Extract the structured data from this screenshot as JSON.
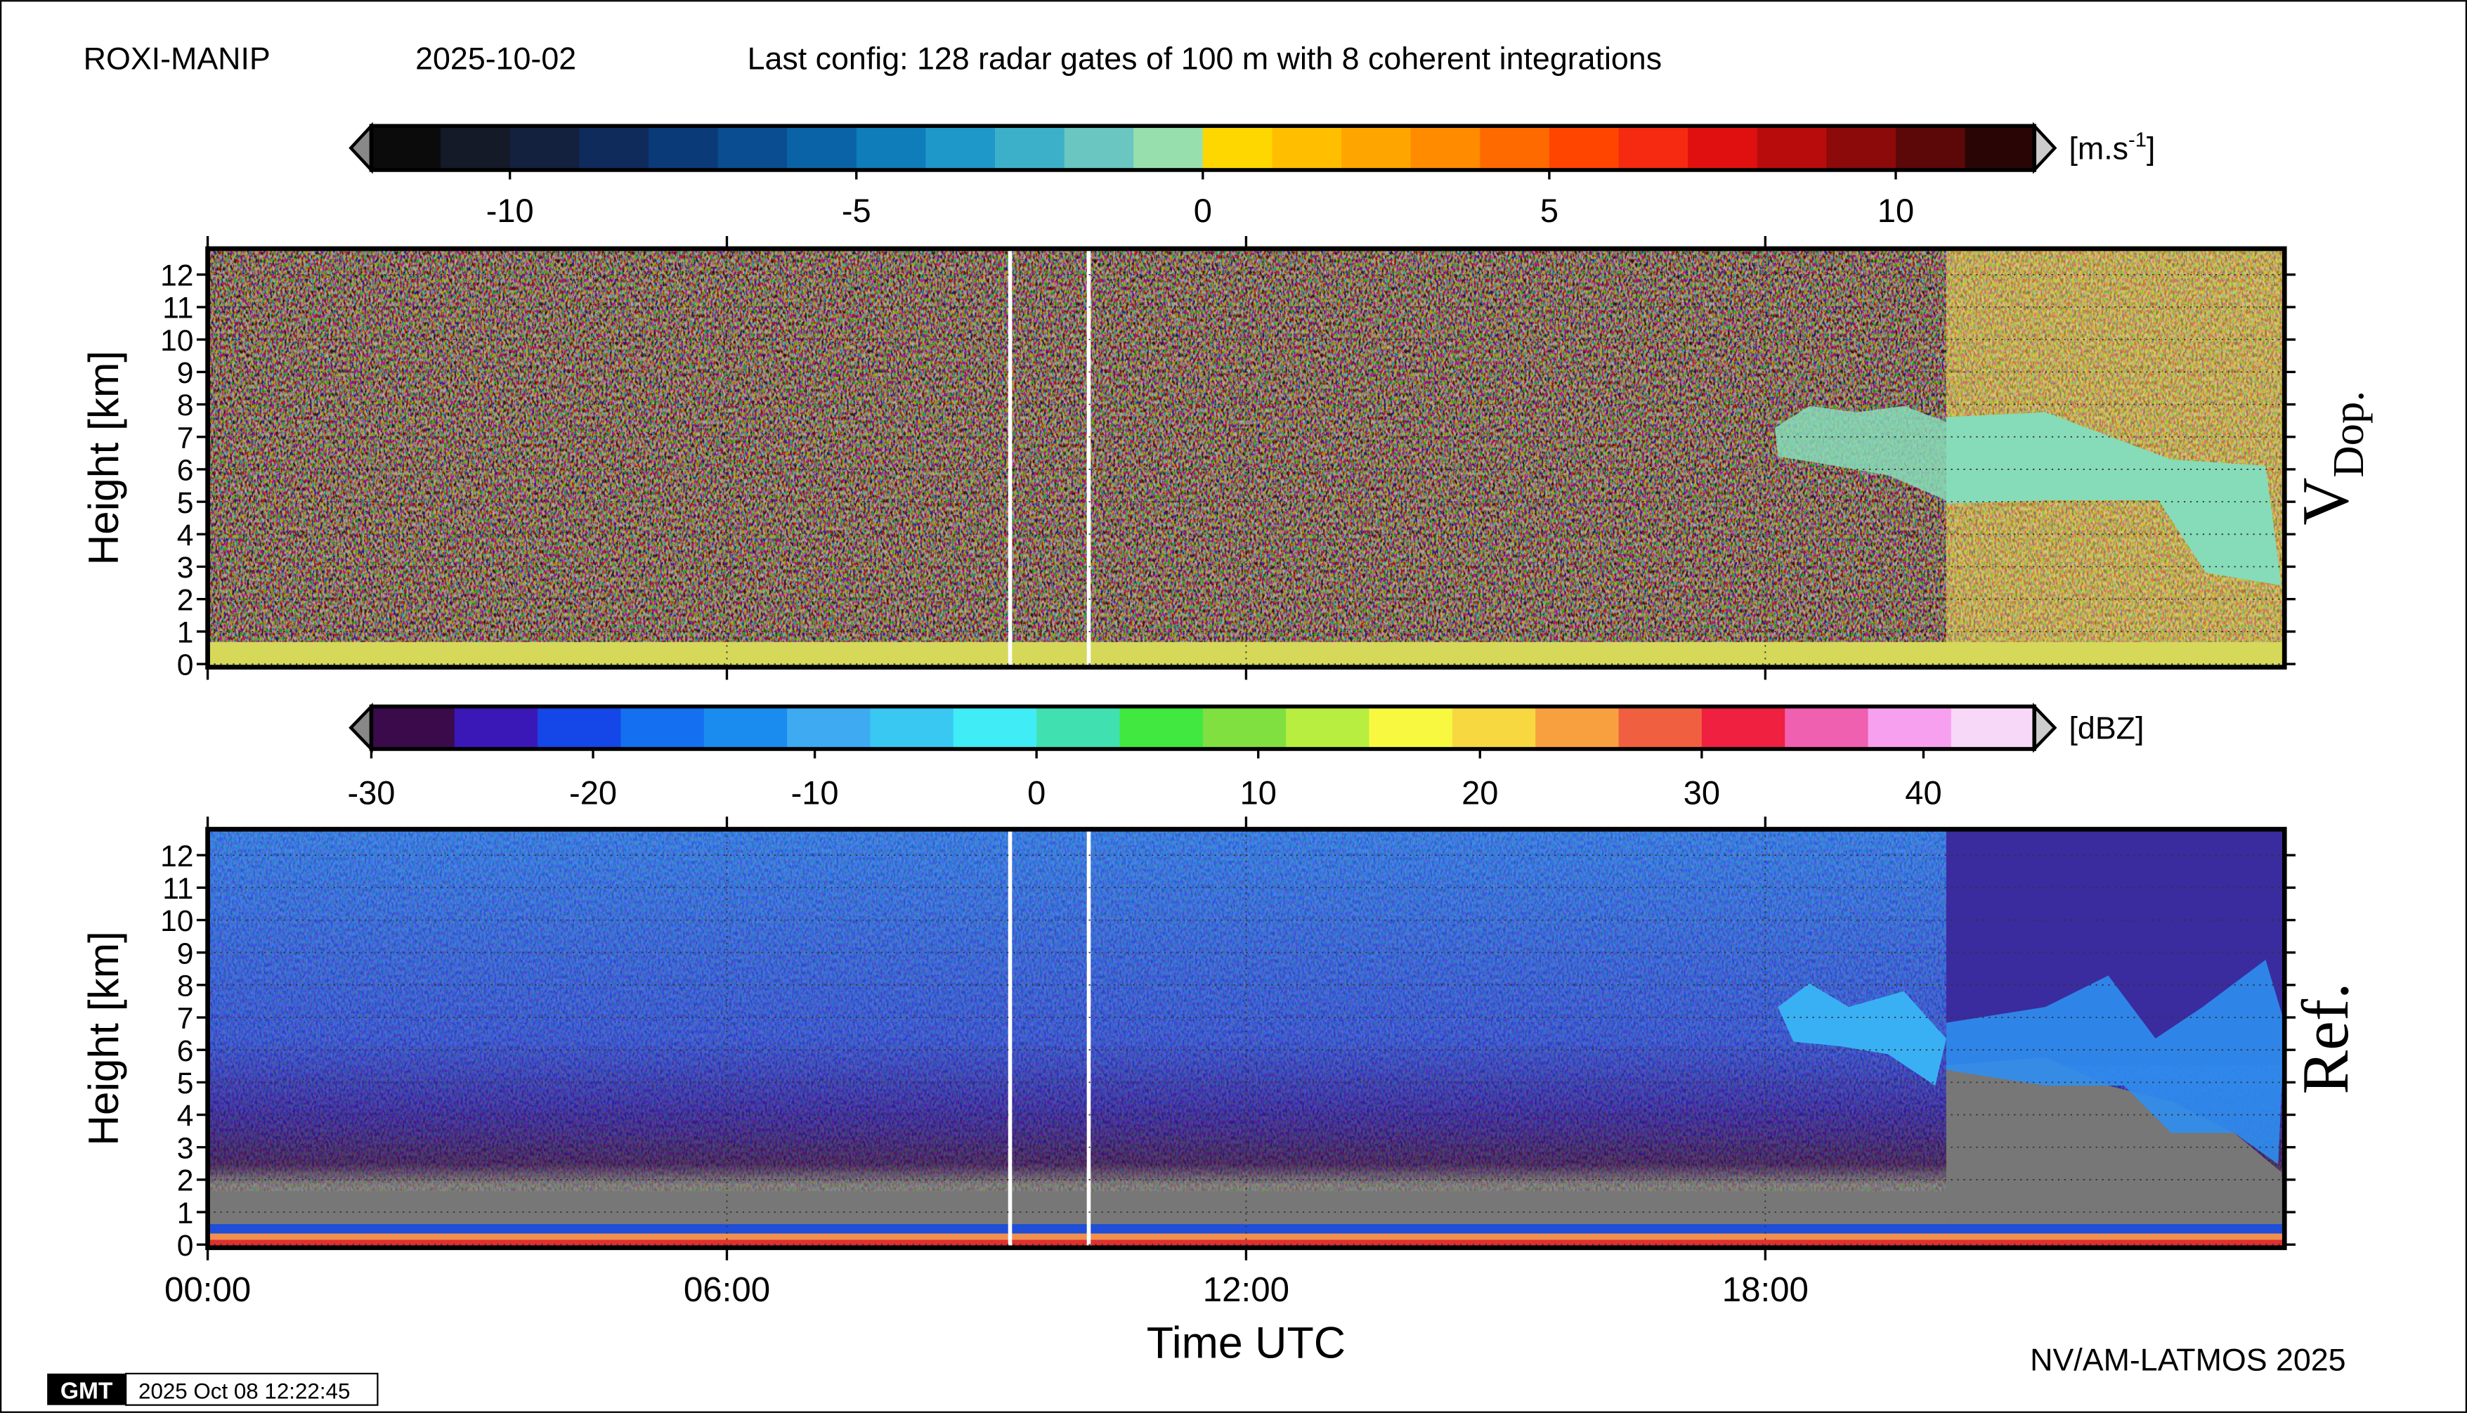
{
  "header": {
    "station": "ROXI-MANIP",
    "date": "2025-10-02",
    "config": "Last config: 128 radar gates of 100 m with 8 coherent integrations"
  },
  "chart_data": [
    {
      "type": "heatmap",
      "panel_label": {
        "main": "V",
        "sub": "Dop."
      },
      "ylabel": "Height [km]",
      "xlim": [
        0,
        24
      ],
      "xticks": [
        {
          "value": 0,
          "label": "00:00"
        },
        {
          "value": 6,
          "label": "06:00"
        },
        {
          "value": 12,
          "label": "12:00"
        },
        {
          "value": 18,
          "label": "18:00"
        }
      ],
      "ylim": [
        0,
        12.8
      ],
      "yticks": [
        0,
        1,
        2,
        3,
        4,
        5,
        6,
        7,
        8,
        9,
        10,
        11,
        12
      ],
      "grid": true,
      "colorbar": {
        "unit": {
          "text": "[m.s",
          "sup": "-1",
          "close": "]"
        },
        "lim": [
          -12,
          12
        ],
        "ticks": [
          -10,
          -5,
          0,
          5,
          10
        ],
        "colors": [
          "#0b0b0b",
          "#141a28",
          "#13213f",
          "#0f2b5c",
          "#0b3a78",
          "#0a4d90",
          "#0a63a6",
          "#0e7dba",
          "#1d98c8",
          "#3cb0c9",
          "#6ac6c0",
          "#98dfae",
          "#ffd700",
          "#ffbf00",
          "#ffa500",
          "#ff8c00",
          "#ff6a00",
          "#ff4500",
          "#f52a10",
          "#e01010",
          "#b80c0c",
          "#8c0a0a",
          "#5c0808",
          "#2a0505"
        ]
      }
    },
    {
      "type": "heatmap",
      "panel_label": {
        "main": "Ref."
      },
      "ylabel": "Height [km]",
      "xlim": [
        0,
        24
      ],
      "xticks": [
        {
          "value": 0,
          "label": "00:00"
        },
        {
          "value": 6,
          "label": "06:00"
        },
        {
          "value": 12,
          "label": "12:00"
        },
        {
          "value": 18,
          "label": "18:00"
        }
      ],
      "ylim": [
        0,
        12.8
      ],
      "yticks": [
        0,
        1,
        2,
        3,
        4,
        5,
        6,
        7,
        8,
        9,
        10,
        11,
        12
      ],
      "grid": true,
      "colorbar": {
        "unit": {
          "text": "[dBZ]"
        },
        "lim": [
          -30,
          45
        ],
        "ticks": [
          -30,
          -20,
          -10,
          0,
          10,
          20,
          30,
          40
        ],
        "colors": [
          "#3a0a4a",
          "#3a18b8",
          "#1446e8",
          "#1470f0",
          "#1a8cf0",
          "#3eaaf2",
          "#38c8f2",
          "#40ecf5",
          "#40e0b0",
          "#40e840",
          "#80e040",
          "#b8ee40",
          "#f8f840",
          "#f8d840",
          "#f8a040",
          "#f06040",
          "#f02040",
          "#f060b0",
          "#f8a0f0",
          "#f8d8f8"
        ]
      }
    }
  ],
  "xlabel": "Time UTC",
  "footer": {
    "credit": "NV/AM-LATMOS 2025",
    "logo": "GMT",
    "timestamp": "2025 Oct 08 12:22:45"
  }
}
